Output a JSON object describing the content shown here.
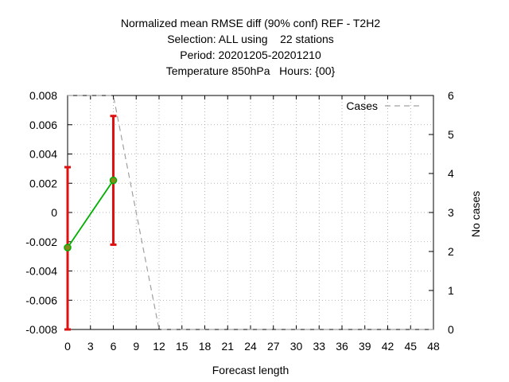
{
  "chart_data": {
    "type": "line",
    "title_lines": [
      "Normalized mean RMSE diff (90% conf) REF - T2H2",
      "Selection: ALL using    22 stations",
      "Period: 20201205-20201210",
      "Temperature 850hPa   Hours: {00}"
    ],
    "xlabel": "Forecast length",
    "ylabel_left": "",
    "ylabel_right": "No cases",
    "xlim": [
      0,
      48
    ],
    "x_ticks": [
      "0",
      "3",
      "6",
      "9",
      "12",
      "15",
      "18",
      "21",
      "24",
      "27",
      "30",
      "33",
      "36",
      "39",
      "42",
      "45",
      "48"
    ],
    "ylim_left": [
      -0.008,
      0.008
    ],
    "y_ticks_left": [
      "0.008",
      "0.006",
      "0.004",
      "0.002",
      "0",
      "-0.002",
      "-0.004",
      "-0.006",
      "-0.008"
    ],
    "ylim_right": [
      0,
      6
    ],
    "y_ticks_right": [
      "6",
      "5",
      "4",
      "3",
      "2",
      "1",
      "0"
    ],
    "grid": true,
    "legend_position": "top-right",
    "series": [
      {
        "name": "",
        "axis": "left",
        "color": "#00b000",
        "marker_color": "#8a8a1a",
        "x": [
          0,
          6
        ],
        "y": [
          -0.0024,
          0.0022
        ],
        "error_low": [
          -0.008,
          -0.0022
        ],
        "error_high": [
          0.0031,
          0.0066
        ],
        "error_color": "#e01010"
      },
      {
        "name": "Cases",
        "axis": "right",
        "style": "dashed",
        "color": "#a0a0a0",
        "x": [
          0,
          6,
          12,
          48
        ],
        "y": [
          6,
          6,
          0,
          0
        ]
      }
    ]
  }
}
